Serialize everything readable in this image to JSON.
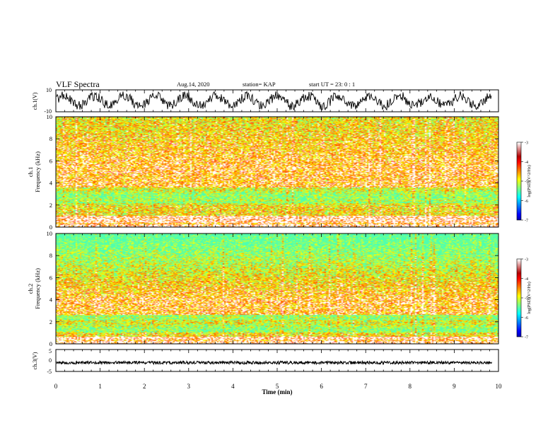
{
  "header": {
    "title": "VLF Spectra",
    "date": "Aug.14, 2020",
    "station": "station= KAP",
    "start": "start  UT =   23: 0  : 1"
  },
  "chart_data": [
    {
      "type": "line",
      "ylabel": "ch.1(V)",
      "ylim": [
        -10,
        10
      ],
      "yticks": [
        "10",
        "-10"
      ],
      "xlim": [
        0,
        10
      ]
    },
    {
      "type": "heatmap",
      "ylabel": "ch.1\nFrequency (kHz)",
      "ylim": [
        0,
        10
      ],
      "yticks": [
        "10",
        "8",
        "6",
        "4",
        "2",
        "0"
      ],
      "xlim": [
        0,
        10
      ],
      "strong_band_khz": [
        1.0,
        4.9
      ],
      "peak_band_khz": [
        2.0,
        3.6
      ],
      "colorbar": {
        "label": "log(PSD)(V^2/Hz)",
        "range": [
          -7,
          -3
        ],
        "ticks": [
          "-3",
          "-4",
          "-5",
          "-6",
          "-7"
        ]
      }
    },
    {
      "type": "heatmap",
      "ylabel": "ch.2\nFrequency (kHz)",
      "ylim": [
        0,
        10
      ],
      "yticks": [
        "10",
        "8",
        "6",
        "4",
        "2",
        "0"
      ],
      "xlim": [
        0,
        10
      ],
      "strong_band_khz": [
        0.6,
        3.6
      ],
      "peak_band_khz": [
        1.0,
        2.6
      ],
      "colorbar": {
        "label": "log(PSD)(V^2/Hz)",
        "range": [
          -7,
          -3
        ],
        "ticks": [
          "-3",
          "-4",
          "-5",
          "-6",
          "-7"
        ]
      }
    },
    {
      "type": "line",
      "ylabel": "ch.3(V)",
      "ylim": [
        -5,
        5
      ],
      "yticks": [
        "5",
        "0",
        "-5"
      ],
      "xlim": [
        0,
        10
      ],
      "xlabel": "Time (min)",
      "xticks": [
        "0",
        "1",
        "2",
        "3",
        "4",
        "5",
        "6",
        "7",
        "8",
        "9",
        "10"
      ]
    }
  ]
}
